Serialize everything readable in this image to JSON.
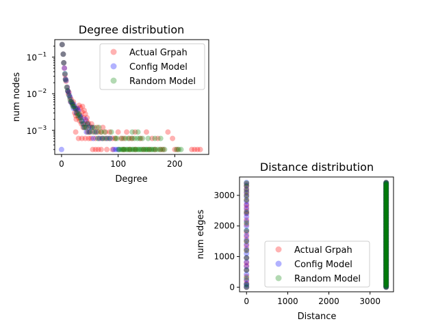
{
  "chart_data": [
    {
      "type": "scatter",
      "title": "Degree distribution",
      "xlabel": "Degree",
      "ylabel": "num nodes",
      "xlim": [
        -12,
        260
      ],
      "ylim": [
        0.00022,
        0.3
      ],
      "yscale": "log",
      "x_ticks": [
        0,
        100,
        200
      ],
      "y_ticks": [
        {
          "value": 0.1,
          "base": "10",
          "exp": "−1"
        },
        {
          "value": 0.01,
          "base": "10",
          "exp": "−2"
        },
        {
          "value": 0.001,
          "base": "10",
          "exp": "−3"
        }
      ],
      "legend_position": "top-right",
      "series": [
        {
          "name": "Actual Grpah",
          "color": "#ff0000",
          "points": [
            [
              1,
              0.22
            ],
            [
              3,
              0.12
            ],
            [
              4,
              0.07
            ],
            [
              5,
              0.05
            ],
            [
              6,
              0.033
            ],
            [
              7,
              0.025
            ],
            [
              8,
              0.022
            ],
            [
              10,
              0.015
            ],
            [
              11,
              0.012
            ],
            [
              12,
              0.01
            ],
            [
              13,
              0.011
            ],
            [
              15,
              0.008
            ],
            [
              16,
              0.006
            ],
            [
              17,
              0.007
            ],
            [
              19,
              0.0055
            ],
            [
              20,
              0.005
            ],
            [
              21,
              0.006
            ],
            [
              22,
              0.0045
            ],
            [
              23,
              0.003
            ],
            [
              24,
              0.004
            ],
            [
              25,
              0.0025
            ],
            [
              26,
              0.002
            ],
            [
              27,
              0.0038
            ],
            [
              28,
              0.0033
            ],
            [
              29,
              0.0028
            ],
            [
              30,
              0.0022
            ],
            [
              31,
              0.0048
            ],
            [
              32,
              0.0018
            ],
            [
              33,
              0.0042
            ],
            [
              34,
              0.0025
            ],
            [
              35,
              0.0015
            ],
            [
              36,
              0.0032
            ],
            [
              37,
              0.0045
            ],
            [
              38,
              0.0012
            ],
            [
              39,
              0.0022
            ],
            [
              40,
              0.0035
            ],
            [
              41,
              0.0015
            ],
            [
              42,
              0.0028
            ],
            [
              43,
              0.0012
            ],
            [
              44,
              0.0018
            ],
            [
              45,
              0.0022
            ],
            [
              46,
              0.0009
            ],
            [
              47,
              0.0016
            ],
            [
              49,
              0.0013
            ],
            [
              50,
              0.0009
            ],
            [
              52,
              0.0006
            ],
            [
              53,
              0.0015
            ],
            [
              55,
              0.0012
            ],
            [
              58,
              0.0009
            ],
            [
              60,
              0.0006
            ],
            [
              63,
              0.0012
            ],
            [
              65,
              0.0009
            ],
            [
              68,
              0.0006
            ],
            [
              70,
              0.0009
            ],
            [
              73,
              0.0012
            ],
            [
              75,
              0.0006
            ],
            [
              78,
              0.0009
            ],
            [
              82,
              0.0006
            ],
            [
              85,
              0.0009
            ],
            [
              90,
              0.0006
            ],
            [
              95,
              0.0006
            ],
            [
              100,
              0.0009
            ],
            [
              105,
              0.0006
            ],
            [
              110,
              0.0006
            ],
            [
              115,
              0.0009
            ],
            [
              120,
              0.0006
            ],
            [
              125,
              0.0006
            ],
            [
              130,
              0.0009
            ],
            [
              140,
              0.0006
            ],
            [
              150,
              0.0009
            ],
            [
              160,
              0.0006
            ],
            [
              170,
              0.0006
            ],
            [
              188,
              0.0009
            ],
            [
              196,
              0.0006
            ],
            [
              200,
              0.0003
            ],
            [
              205,
              0.0003
            ],
            [
              230,
              0.0003
            ],
            [
              235,
              0.0003
            ],
            [
              240,
              0.0003
            ],
            [
              245,
              0.0003
            ],
            [
              25,
              0.0009
            ],
            [
              30,
              0.0006
            ],
            [
              36,
              0.0006
            ],
            [
              42,
              0.0006
            ],
            [
              48,
              0.0006
            ],
            [
              55,
              0.0003
            ],
            [
              60,
              0.0003
            ],
            [
              65,
              0.0003
            ],
            [
              70,
              0.0003
            ],
            [
              80,
              0.0003
            ],
            [
              90,
              0.0003
            ],
            [
              110,
              0.0003
            ],
            [
              120,
              0.0003
            ],
            [
              130,
              0.0003
            ],
            [
              145,
              0.0003
            ],
            [
              155,
              0.0003
            ],
            [
              165,
              0.0003
            ],
            [
              175,
              0.0003
            ],
            [
              180,
              0.0003
            ]
          ]
        },
        {
          "name": "Config Model",
          "color": "#0000ff",
          "points": [
            [
              1,
              0.22
            ],
            [
              3,
              0.12
            ],
            [
              4,
              0.07
            ],
            [
              5,
              0.05
            ],
            [
              6,
              0.035
            ],
            [
              7,
              0.025
            ],
            [
              8,
              0.023
            ],
            [
              10,
              0.015
            ],
            [
              11,
              0.012
            ],
            [
              12,
              0.011
            ],
            [
              14,
              0.009
            ],
            [
              15,
              0.008
            ],
            [
              16,
              0.006
            ],
            [
              18,
              0.006
            ],
            [
              19,
              0.005
            ],
            [
              21,
              0.004
            ],
            [
              22,
              0.005
            ],
            [
              24,
              0.004
            ],
            [
              26,
              0.003
            ],
            [
              28,
              0.004
            ],
            [
              30,
              0.0035
            ],
            [
              32,
              0.0025
            ],
            [
              34,
              0.0023
            ],
            [
              36,
              0.0018
            ],
            [
              38,
              0.0015
            ],
            [
              40,
              0.0012
            ],
            [
              42,
              0.002
            ],
            [
              44,
              0.0009
            ],
            [
              46,
              0.0015
            ],
            [
              48,
              0.0012
            ],
            [
              50,
              0.0009
            ],
            [
              54,
              0.0012
            ],
            [
              56,
              0.0006
            ],
            [
              60,
              0.0009
            ],
            [
              66,
              0.0006
            ],
            [
              72,
              0.0006
            ],
            [
              80,
              0.0006
            ],
            [
              86,
              0.0006
            ],
            [
              92,
              0.0003
            ],
            [
              96,
              0.0003
            ],
            [
              100,
              0.0003
            ],
            [
              0,
              0.0003
            ]
          ]
        },
        {
          "name": "Random Model",
          "color": "#008000",
          "points": [
            [
              1,
              0.22
            ],
            [
              3,
              0.12
            ],
            [
              4,
              0.07
            ],
            [
              6,
              0.035
            ],
            [
              7,
              0.024
            ],
            [
              9,
              0.015
            ],
            [
              11,
              0.012
            ],
            [
              13,
              0.009
            ],
            [
              15,
              0.007
            ],
            [
              17,
              0.006
            ],
            [
              19,
              0.0055
            ],
            [
              20,
              0.0045
            ],
            [
              22,
              0.0045
            ],
            [
              25,
              0.0038
            ],
            [
              27,
              0.003
            ],
            [
              29,
              0.0025
            ],
            [
              31,
              0.0028
            ],
            [
              33,
              0.0022
            ],
            [
              35,
              0.0018
            ],
            [
              38,
              0.0015
            ],
            [
              40,
              0.0012
            ],
            [
              43,
              0.0012
            ],
            [
              46,
              0.0015
            ],
            [
              48,
              0.0009
            ],
            [
              52,
              0.0012
            ],
            [
              55,
              0.0009
            ],
            [
              58,
              0.0012
            ],
            [
              62,
              0.0009
            ],
            [
              64,
              0.0006
            ],
            [
              66,
              0.0012
            ],
            [
              70,
              0.0009
            ],
            [
              72,
              0.0006
            ],
            [
              76,
              0.0009
            ],
            [
              78,
              0.0006
            ],
            [
              85,
              0.0006
            ],
            [
              88,
              0.0009
            ],
            [
              95,
              0.0006
            ],
            [
              98,
              0.0006
            ],
            [
              101,
              0.0003
            ],
            [
              103,
              0.0003
            ],
            [
              106,
              0.0003
            ],
            [
              108,
              0.0003
            ],
            [
              110,
              0.0003
            ],
            [
              112,
              0.0003
            ],
            [
              115,
              0.0003
            ],
            [
              117,
              0.0003
            ],
            [
              120,
              0.0003
            ],
            [
              122,
              0.0003
            ],
            [
              125,
              0.0003
            ],
            [
              127,
              0.0003
            ],
            [
              130,
              0.0003
            ],
            [
              132,
              0.0003
            ],
            [
              135,
              0.0003
            ],
            [
              137,
              0.0003
            ],
            [
              140,
              0.0003
            ],
            [
              142,
              0.0003
            ],
            [
              145,
              0.0003
            ],
            [
              148,
              0.0003
            ],
            [
              150,
              0.0003
            ],
            [
              152,
              0.0003
            ],
            [
              155,
              0.0003
            ],
            [
              158,
              0.0003
            ],
            [
              160,
              0.0003
            ],
            [
              163,
              0.0003
            ],
            [
              166,
              0.0003
            ],
            [
              170,
              0.0003
            ],
            [
              174,
              0.0003
            ],
            [
              178,
              0.0003
            ],
            [
              182,
              0.0003
            ],
            [
              203,
              0.0003
            ],
            [
              207,
              0.0003
            ],
            [
              211,
              0.0003
            ],
            [
              107,
              0.0006
            ],
            [
              113,
              0.0006
            ],
            [
              118,
              0.0006
            ],
            [
              124,
              0.0006
            ],
            [
              129,
              0.0006
            ],
            [
              134,
              0.0006
            ],
            [
              138,
              0.0006
            ],
            [
              143,
              0.0006
            ],
            [
              153,
              0.0006
            ],
            [
              165,
              0.0006
            ],
            [
              175,
              0.0006
            ],
            [
              125,
              0.0009
            ],
            [
              135,
              0.0009
            ]
          ]
        }
      ]
    },
    {
      "type": "scatter",
      "title": "Distance distribution",
      "xlabel": "Distance",
      "ylabel": "num edges",
      "xlim": [
        -170,
        3570
      ],
      "ylim": [
        -150,
        3600
      ],
      "x_ticks": [
        0,
        1000,
        2000,
        3000
      ],
      "y_ticks": [
        0,
        1000,
        2000,
        3000
      ],
      "legend_position": "lower-center",
      "series": [
        {
          "name": "Actual Grpah",
          "color": "#ff0000",
          "columns": [
            {
              "x": 0,
              "y_values": [
                0,
                100,
                210,
                350,
                560,
                700,
                800,
                960,
                1200,
                1350,
                1500,
                1650,
                1800,
                2050,
                2200,
                2400,
                2480,
                2600,
                2700,
                2850,
                3000,
                3100,
                3200,
                3300,
                3380
              ]
            },
            {
              "x": 3390,
              "y_range": [
                0,
                3420
              ]
            }
          ]
        },
        {
          "name": "Config Model",
          "color": "#0000ff",
          "columns": [
            {
              "x": 0,
              "y_values": [
                0,
                60,
                120,
                250,
                420,
                560,
                680,
                820,
                960,
                1100,
                1250,
                1400,
                1550,
                1700,
                1850,
                2000,
                2150,
                2300,
                2420,
                2550,
                2680,
                2800,
                2950,
                3080,
                3200,
                3330,
                3420
              ]
            },
            {
              "x": 3390,
              "y_range": [
                0,
                3420
              ]
            }
          ]
        },
        {
          "name": "Random Model",
          "color": "#008000",
          "columns": [
            {
              "x": 0,
              "y_values": [
                0,
                90,
                300,
                560,
                960,
                1200,
                1500,
                1850,
                2100,
                2450,
                2850,
                3000,
                3150,
                3300,
                3400
              ]
            },
            {
              "x": 3390,
              "y_range": [
                0,
                3420
              ]
            }
          ]
        }
      ]
    }
  ]
}
